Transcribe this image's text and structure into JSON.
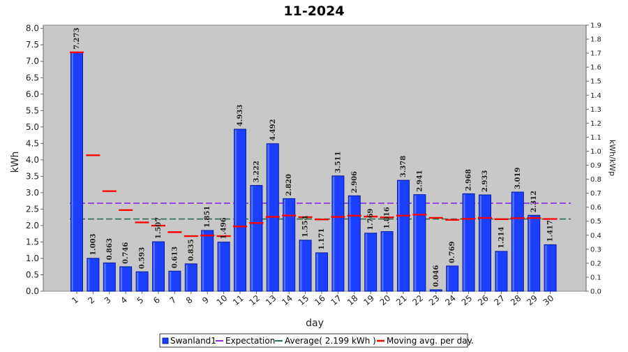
{
  "chart_data": {
    "type": "bar",
    "title": "11-2024",
    "xlabel": "day",
    "ylabel": "kWh",
    "ylabel_right": "kWh/kWp",
    "ylim": [
      0,
      8.1
    ],
    "ylim_right": [
      0,
      1.9
    ],
    "y_ticks": [
      "0.0",
      "0.5",
      "1.0",
      "1.5",
      "2.0",
      "2.5",
      "3.0",
      "3.5",
      "4.0",
      "4.5",
      "5.0",
      "5.5",
      "6.0",
      "6.5",
      "7.0",
      "7.5",
      "8.0"
    ],
    "y_right_ticks": [
      "0.0",
      "0.1",
      "0.2",
      "0.3",
      "0.4",
      "0.5",
      "0.6",
      "0.7",
      "0.8",
      "0.9",
      "1.0",
      "1.1",
      "1.2",
      "1.3",
      "1.4",
      "1.5",
      "1.6",
      "1.7",
      "1.8",
      "1.9"
    ],
    "categories": [
      "1",
      "2",
      "3",
      "4",
      "5",
      "6",
      "7",
      "8",
      "9",
      "10",
      "11",
      "12",
      "13",
      "14",
      "15",
      "16",
      "17",
      "18",
      "19",
      "20",
      "21",
      "22",
      "23",
      "24",
      "25",
      "26",
      "27",
      "28",
      "29",
      "30"
    ],
    "series": [
      {
        "name": "Swanland1",
        "values": [
          7.273,
          1.003,
          0.863,
          0.746,
          0.593,
          1.507,
          0.613,
          0.835,
          1.851,
          1.496,
          4.933,
          3.222,
          4.492,
          2.82,
          1.554,
          1.171,
          3.511,
          2.906,
          1.769,
          1.816,
          3.378,
          2.941,
          0.046,
          0.769,
          2.968,
          2.933,
          1.214,
          3.019,
          2.312,
          1.417
        ],
        "value_labels": [
          "7.273",
          "1.003",
          "0.863",
          "0.746",
          "0.593",
          "1.507",
          "0.613",
          "0.835",
          "1.851",
          "1.496",
          "4.933",
          "3.222",
          "4.492",
          "2.820",
          "1.554",
          "1.171",
          "3.511",
          "2.906",
          "1.769",
          "1.816",
          "3.378",
          "2.941",
          "0.046",
          "0.769",
          "2.968",
          "2.933",
          "1.214",
          "3.019",
          "2.312",
          "1.417"
        ]
      },
      {
        "name": "Moving avg. per day.",
        "values": [
          7.273,
          4.138,
          3.046,
          2.471,
          2.095,
          1.997,
          1.799,
          1.679,
          1.698,
          1.678,
          1.974,
          2.078,
          2.264,
          2.304,
          2.254,
          2.186,
          2.264,
          2.3,
          2.272,
          2.249,
          2.303,
          2.332,
          2.233,
          2.172,
          2.204,
          2.232,
          2.194,
          2.224,
          2.227,
          2.2
        ]
      }
    ],
    "expectation": {
      "name": "Expectation",
      "value": 2.68
    },
    "average": {
      "name": "Average( 2.199 kWh )",
      "value": 2.199
    },
    "legend_position": "bottom",
    "grid": false,
    "colors": {
      "bar": "#1a3fff",
      "bar_edge": "#0a1d9e",
      "moving_avg": "#ff0000",
      "expectation": "#8a2be2",
      "average": "#2f6f4f",
      "plot_bg": "#c8c8c8"
    }
  }
}
